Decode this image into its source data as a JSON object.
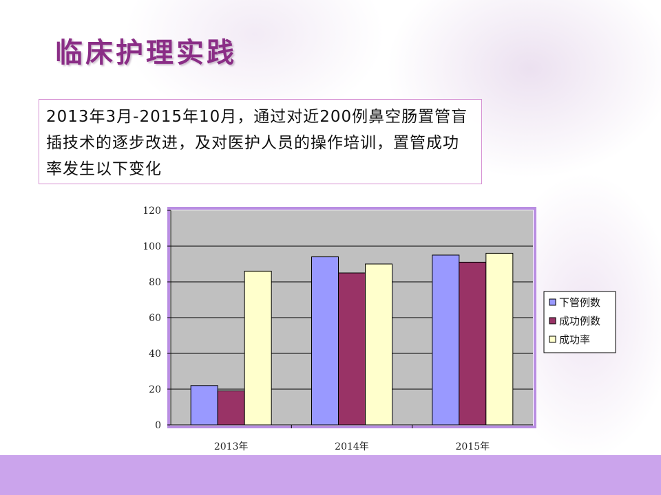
{
  "slide": {
    "title": "临床护理实践",
    "text": "2013年3月-2015年10月，通过对近200例鼻空肠置管盲插技术的逐步改进，及对医护人员的操作培训，置管成功率发生以下变化",
    "colors": {
      "title": "#8a2d86",
      "text_box_border": "#d58fd2",
      "bottom_bar": "#cba4ec",
      "plot_border": "#b98ee2",
      "plot_background": "#c0c0c0"
    }
  },
  "chart_data": {
    "type": "bar",
    "categories": [
      "2013年",
      "2014年",
      "2015年"
    ],
    "series": [
      {
        "name": "下管例数",
        "values": [
          22,
          94,
          95
        ],
        "color": "#9999ff"
      },
      {
        "name": "成功例数",
        "values": [
          19,
          85,
          91
        ],
        "color": "#993366"
      },
      {
        "name": "成功率",
        "values": [
          86,
          90,
          96
        ],
        "color": "#ffffcc"
      }
    ],
    "title": "",
    "xlabel": "",
    "ylabel": "",
    "ylim": [
      0,
      120
    ],
    "yticks": [
      "0",
      "20",
      "40",
      "60",
      "80",
      "100",
      "120"
    ],
    "grid": true,
    "legend": "right"
  }
}
